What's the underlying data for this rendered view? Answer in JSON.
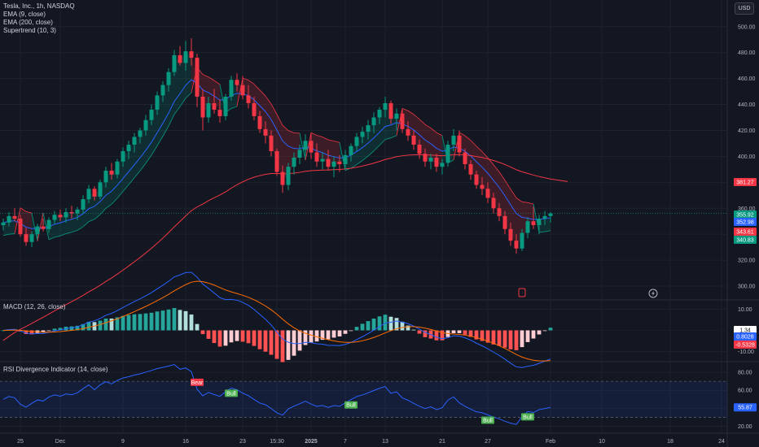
{
  "header": {
    "symbol": "Tesla, Inc., 1h, NASDAQ",
    "ind1": "EMA (9, close)",
    "ind2": "EMA (200, close)",
    "ind3": "Supertrend (10, 3)",
    "currency": "USD"
  },
  "colors": {
    "bg": "#131722",
    "grid": "#1e222d",
    "up": "#089981",
    "down": "#f23645",
    "ema9": "#2962ff",
    "ema200": "#f23645",
    "macd": "#2962ff",
    "signal": "#ff6d00",
    "rsi": "#2962ff",
    "bull": "#4caf50",
    "bear": "#f23645"
  },
  "chart_data": [
    {
      "type": "candlestick",
      "title": "Tesla, Inc., 1h, NASDAQ",
      "ylim": [
        290,
        508
      ],
      "y_ticks": [
        300,
        320,
        340,
        360,
        380,
        400,
        420,
        440,
        460,
        480,
        500
      ],
      "x_ticks": [
        {
          "label": "25",
          "i": 3
        },
        {
          "label": "Dec",
          "i": 10
        },
        {
          "label": "9",
          "i": 21
        },
        {
          "label": "16",
          "i": 32
        },
        {
          "label": "23",
          "i": 42
        },
        {
          "label": "15:30",
          "i": 48
        },
        {
          "label": "2025",
          "i": 54
        },
        {
          "label": "7",
          "i": 60
        },
        {
          "label": "13",
          "i": 67
        },
        {
          "label": "21",
          "i": 77
        },
        {
          "label": "27",
          "i": 85
        },
        {
          "label": "Feb",
          "i": 96
        },
        {
          "label": "10",
          "i": 105
        },
        {
          "label": "18",
          "i": 117
        },
        {
          "label": "24",
          "i": 126
        }
      ],
      "ohlc": [
        [
          347,
          352,
          343,
          349
        ],
        [
          349,
          357,
          346,
          354
        ],
        [
          354,
          360,
          350,
          352
        ],
        [
          352,
          355,
          338,
          340
        ],
        [
          340,
          345,
          331,
          334
        ],
        [
          334,
          342,
          330,
          340
        ],
        [
          340,
          348,
          337,
          346
        ],
        [
          346,
          352,
          342,
          344
        ],
        [
          344,
          353,
          341,
          351
        ],
        [
          351,
          358,
          348,
          355
        ],
        [
          355,
          359,
          350,
          353
        ],
        [
          353,
          360,
          349,
          357
        ],
        [
          357,
          362,
          352,
          356
        ],
        [
          356,
          361,
          351,
          359
        ],
        [
          359,
          370,
          356,
          367
        ],
        [
          367,
          378,
          364,
          375
        ],
        [
          375,
          377,
          366,
          369
        ],
        [
          369,
          382,
          367,
          380
        ],
        [
          380,
          392,
          376,
          389
        ],
        [
          389,
          395,
          382,
          386
        ],
        [
          386,
          398,
          383,
          396
        ],
        [
          396,
          407,
          392,
          404
        ],
        [
          404,
          412,
          398,
          409
        ],
        [
          409,
          418,
          403,
          415
        ],
        [
          415,
          422,
          410,
          420
        ],
        [
          420,
          432,
          416,
          428
        ],
        [
          428,
          440,
          424,
          436
        ],
        [
          436,
          450,
          432,
          447
        ],
        [
          447,
          458,
          442,
          455
        ],
        [
          455,
          468,
          450,
          465
        ],
        [
          465,
          482,
          462,
          478
        ],
        [
          478,
          485,
          470,
          472
        ],
        [
          472,
          489,
          466,
          481
        ],
        [
          481,
          491,
          470,
          476
        ],
        [
          476,
          479,
          438,
          446
        ],
        [
          446,
          452,
          420,
          430
        ],
        [
          430,
          446,
          426,
          441
        ],
        [
          441,
          452,
          433,
          436
        ],
        [
          436,
          444,
          426,
          431
        ],
        [
          431,
          448,
          428,
          446
        ],
        [
          446,
          462,
          443,
          459
        ],
        [
          459,
          464,
          450,
          455
        ],
        [
          455,
          462,
          444,
          447
        ],
        [
          447,
          455,
          437,
          441
        ],
        [
          441,
          446,
          428,
          431
        ],
        [
          431,
          435,
          418,
          421
        ],
        [
          421,
          427,
          410,
          416
        ],
        [
          416,
          420,
          400,
          404
        ],
        [
          404,
          406,
          385,
          388
        ],
        [
          388,
          393,
          372,
          378
        ],
        [
          378,
          395,
          374,
          392
        ],
        [
          392,
          403,
          386,
          399
        ],
        [
          399,
          409,
          394,
          405
        ],
        [
          405,
          417,
          400,
          412
        ],
        [
          412,
          418,
          398,
          403
        ],
        [
          403,
          410,
          392,
          396
        ],
        [
          396,
          403,
          390,
          398
        ],
        [
          398,
          405,
          389,
          392
        ],
        [
          392,
          400,
          384,
          396
        ],
        [
          396,
          401,
          388,
          394
        ],
        [
          394,
          405,
          390,
          401
        ],
        [
          401,
          410,
          396,
          408
        ],
        [
          408,
          418,
          404,
          415
        ],
        [
          415,
          423,
          410,
          419
        ],
        [
          419,
          428,
          413,
          424
        ],
        [
          424,
          434,
          418,
          430
        ],
        [
          430,
          438,
          425,
          436
        ],
        [
          436,
          446,
          430,
          441
        ],
        [
          441,
          443,
          425,
          429
        ],
        [
          429,
          437,
          420,
          433
        ],
        [
          433,
          436,
          418,
          421
        ],
        [
          421,
          427,
          412,
          416
        ],
        [
          416,
          420,
          405,
          409
        ],
        [
          409,
          413,
          398,
          402
        ],
        [
          402,
          406,
          392,
          396
        ],
        [
          396,
          402,
          390,
          399
        ],
        [
          399,
          402,
          388,
          392
        ],
        [
          392,
          398,
          386,
          395
        ],
        [
          395,
          412,
          392,
          409
        ],
        [
          409,
          421,
          404,
          416
        ],
        [
          416,
          420,
          400,
          403
        ],
        [
          403,
          406,
          390,
          394
        ],
        [
          394,
          397,
          382,
          386
        ],
        [
          386,
          389,
          375,
          378
        ],
        [
          378,
          384,
          370,
          375
        ],
        [
          375,
          380,
          364,
          368
        ],
        [
          368,
          372,
          356,
          360
        ],
        [
          360,
          364,
          350,
          354
        ],
        [
          354,
          358,
          340,
          344
        ],
        [
          344,
          349,
          331,
          335
        ],
        [
          335,
          340,
          325,
          329
        ],
        [
          329,
          344,
          327,
          341
        ],
        [
          341,
          353,
          337,
          350
        ],
        [
          350,
          361,
          344,
          347
        ],
        [
          347,
          355,
          340,
          352
        ],
        [
          352,
          358,
          347,
          354
        ],
        [
          354,
          357,
          349,
          356
        ]
      ],
      "price_labels": [
        {
          "value": "381.27",
          "color": "#f23645"
        },
        {
          "value": "355.92",
          "color": "#089981"
        },
        {
          "value": "352.98",
          "color": "#2962ff"
        },
        {
          "value": "343.61",
          "color": "#f23645"
        },
        {
          "value": "340.83",
          "color": "#089981"
        }
      ]
    },
    {
      "type": "histogram+line",
      "title": "MACD (12, 26, close)",
      "ylim": [
        -14,
        14
      ],
      "y_ticks": [
        -10,
        0,
        10
      ],
      "value_labels": [
        {
          "value": "1.34",
          "color": "#ffffff",
          "text_color": "#131722"
        },
        {
          "value": "0.8028",
          "color": "#2962ff"
        },
        {
          "value": "-0.5328",
          "color": "#f23645"
        }
      ]
    },
    {
      "type": "line",
      "title": "RSI Divergence Indicator (14, close)",
      "ylim": [
        15,
        90
      ],
      "y_ticks": [
        20,
        40,
        60,
        80
      ],
      "bands": [
        30,
        70
      ],
      "current": "55.87",
      "signals": [
        {
          "label": "Bear",
          "i": 34,
          "kind": "bear"
        },
        {
          "label": "Bull",
          "i": 40,
          "kind": "bull"
        },
        {
          "label": "Bull",
          "i": 61,
          "kind": "bull"
        },
        {
          "label": "Bull",
          "i": 85,
          "kind": "bull"
        },
        {
          "label": "Bull",
          "i": 92,
          "kind": "bull"
        }
      ]
    }
  ]
}
